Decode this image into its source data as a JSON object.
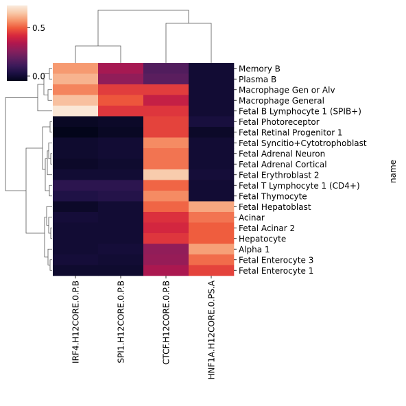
{
  "chart_data": {
    "type": "heatmap",
    "title": "",
    "ylabel": "name",
    "xlabel": "",
    "columns": [
      "IRF4.H12CORE.0.P.B",
      "SPI1.H12CORE.0.P.B",
      "CTCF.H12CORE.0.P.B",
      "HNF1A.H12CORE.0.PS.A"
    ],
    "rows": [
      "Memory B",
      "Plasma B",
      "Macrophage Gen or Alv",
      "Macrophage General",
      "Fetal B Lymphocyte 1 (SPIB+)",
      "Fetal Photoreceptor",
      "Fetal Retinal Progenitor 1",
      "Fetal Syncitio+Cytotrophoblast",
      "Fetal Adrenal Neuron",
      "Fetal Adrenal Cortical",
      "Fetal Erythroblast 2",
      "Fetal T Lymphocyte 1 (CD4+)",
      "Fetal Thymocyte",
      "Fetal Hepatoblast",
      "Acinar",
      "Fetal Acinar 2",
      "Hepatocyte",
      "Alpha 1",
      "Fetal Enterocyte 3",
      "Fetal Enterocyte 1"
    ],
    "values": [
      [
        0.58,
        0.32,
        0.15,
        0.0
      ],
      [
        0.62,
        0.28,
        0.17,
        0.0
      ],
      [
        0.55,
        0.45,
        0.45,
        0.0
      ],
      [
        0.64,
        0.49,
        0.38,
        0.0
      ],
      [
        0.72,
        0.44,
        0.44,
        0.0
      ],
      [
        -0.03,
        -0.02,
        0.46,
        0.02
      ],
      [
        -0.05,
        -0.03,
        0.46,
        -0.02
      ],
      [
        -0.01,
        0.0,
        0.56,
        0.0
      ],
      [
        -0.01,
        0.0,
        0.53,
        0.0
      ],
      [
        -0.02,
        -0.01,
        0.53,
        0.0
      ],
      [
        0.0,
        0.0,
        0.66,
        0.01
      ],
      [
        0.07,
        0.07,
        0.51,
        0.0
      ],
      [
        0.04,
        0.05,
        0.56,
        0.0
      ],
      [
        -0.02,
        0.0,
        0.51,
        0.6
      ],
      [
        0.01,
        0.0,
        0.43,
        0.53
      ],
      [
        0.0,
        0.0,
        0.41,
        0.5
      ],
      [
        0.0,
        0.0,
        0.44,
        0.5
      ],
      [
        0.0,
        0.01,
        0.28,
        0.59
      ],
      [
        0.01,
        0.0,
        0.29,
        0.52
      ],
      [
        -0.01,
        -0.01,
        0.33,
        0.46
      ]
    ],
    "colorbar": {
      "vmin": -0.05,
      "vmax": 0.73,
      "ticks": [
        0.0,
        0.5
      ],
      "tick_labels": [
        "0.0",
        "0.5"
      ]
    },
    "colormap": "rocket",
    "row_dendrogram": "left",
    "col_dendrogram": "top",
    "grid": false
  }
}
